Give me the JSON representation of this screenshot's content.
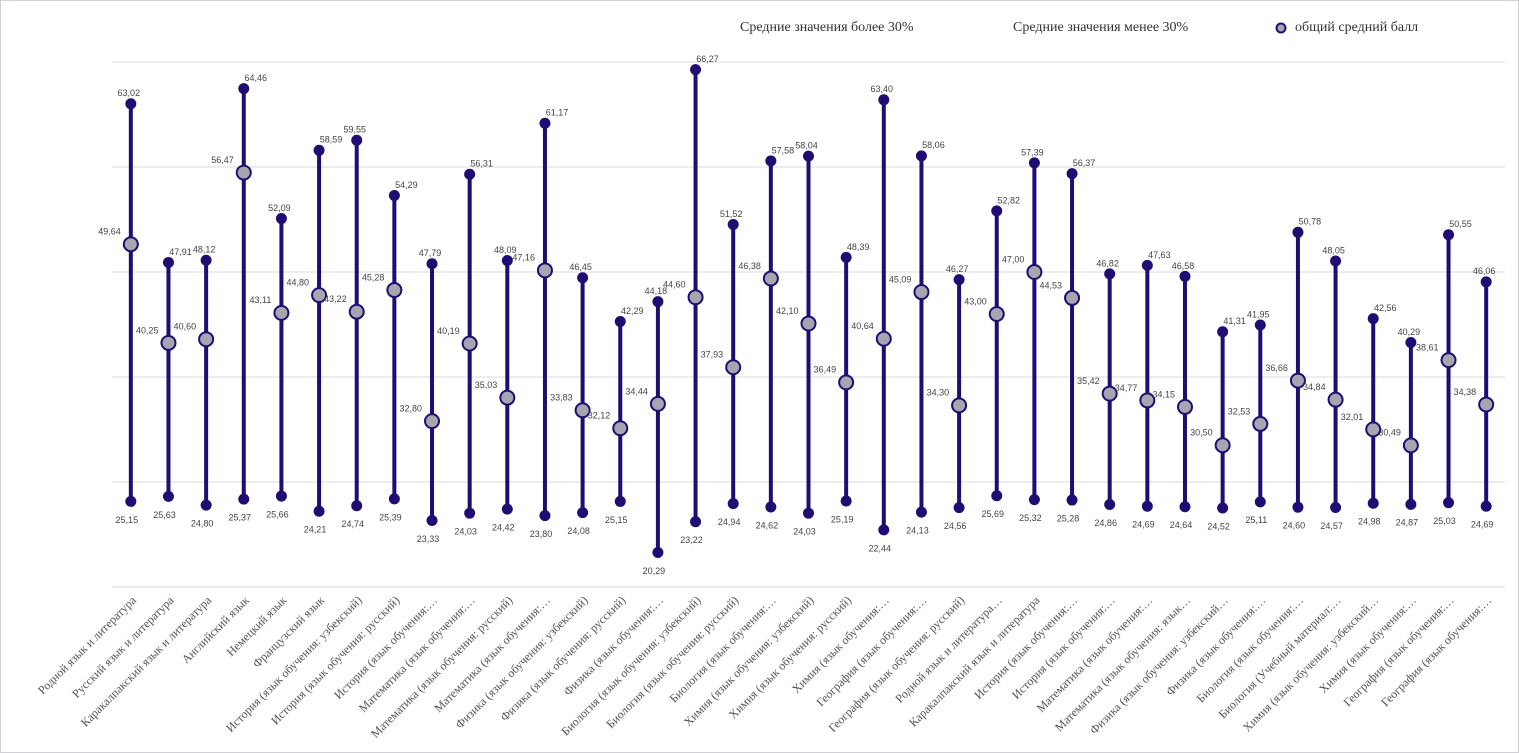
{
  "chart_data": {
    "type": "dumbbell",
    "categories": [
      "Родной язык и литература",
      "Русский язык и литература",
      "Каракалпакский язык и литература",
      "Английский язык",
      "Немецкий язык",
      "Французский язык",
      "История (язык обучения: узбекский)",
      "История (язык обучения: русский)",
      "История (язык обучения:…",
      "Математика (язык обучения:…",
      "Математика (язык обучения: русский)",
      "Математика  (язык обучения:…",
      "Физика (язык обучения: узбекский)",
      "Физика (язык обучения: русский)",
      "Физика (язык обучения:…",
      "Биология (язык обучения: узбекский)",
      "Биология (язык обучения: русский)",
      "Биология  (язык обучения:…",
      "Химия  (язык обучения: узбекский)",
      "Химия (язык обучения: русский)",
      "Химия (язык обучения:…",
      "География (язык обучения:…",
      "География (язык обучения: русский)",
      "Родной язык и литература…",
      "Каракалпакский язык и литература",
      "История (язык обучения:…",
      "История (язык обучения:…",
      "Математика (язык обучения:…",
      "Математика (язык обучения: язык…",
      "Физика (язык обучения: узбекский…",
      "Физика (язык обучения:…",
      "Биология (язык обучения:…",
      "Биология (Учебный материал:…",
      "Химия (язык обучения: узбекский…",
      "Химия (язык обучения:…",
      "География (язык обучения:…",
      "География (язык обучения:…"
    ],
    "series": [
      {
        "name": "Средние значения более 30%",
        "color": "#1f0d73",
        "values": [
          63.02,
          47.91,
          48.12,
          64.46,
          52.09,
          58.59,
          59.55,
          54.29,
          47.79,
          56.31,
          48.09,
          61.17,
          46.45,
          42.29,
          44.18,
          66.27,
          51.52,
          57.58,
          58.04,
          48.39,
          63.4,
          58.06,
          46.27,
          52.82,
          57.39,
          56.37,
          46.82,
          47.63,
          46.58,
          41.31,
          41.95,
          50.78,
          48.05,
          42.56,
          40.29,
          50.55,
          46.06
        ],
        "value_labels": [
          "63,02",
          "47,91",
          "48,12",
          "64,46",
          "52,09",
          "58,59",
          "59,55",
          "54,29",
          "47,79",
          "56,31",
          "48,09",
          "61,17",
          "46,45",
          "42,29",
          "44,18",
          "66,27",
          "51,52",
          "57,58",
          "58,04",
          "48,39",
          "63,40",
          "58,06",
          "46,27",
          "52,82",
          "57,39",
          "56,37",
          "46,82",
          "47,63",
          "46,58",
          "41,31",
          "41,95",
          "50,78",
          "48,05",
          "42,56",
          "40,29",
          "50,55",
          "46,06"
        ]
      },
      {
        "name": "Средние значения менее 30%",
        "color": "#1f0d73",
        "values": [
          25.15,
          25.63,
          24.8,
          25.37,
          25.66,
          24.21,
          24.74,
          25.39,
          23.33,
          24.03,
          24.42,
          23.8,
          24.08,
          25.15,
          20.29,
          23.22,
          24.94,
          24.62,
          24.03,
          25.19,
          22.44,
          24.13,
          24.56,
          25.69,
          25.32,
          25.28,
          24.86,
          24.69,
          24.64,
          24.52,
          25.11,
          24.6,
          24.57,
          24.98,
          24.87,
          25.03,
          24.69
        ],
        "value_labels": [
          "25,15",
          "25,63",
          "24,80",
          "25,37",
          "25,66",
          "24,21",
          "24,74",
          "25,39",
          "23,33",
          "24,03",
          "24,42",
          "23,80",
          "24,08",
          "25,15",
          "20,29",
          "23,22",
          "24,94",
          "24,62",
          "24,03",
          "25,19",
          "22,44",
          "24,13",
          "24,56",
          "25,69",
          "25,32",
          "25,28",
          "24,86",
          "24,69",
          "24,64",
          "24,52",
          "25,11",
          "24,60",
          "24,57",
          "24,98",
          "24,87",
          "25,03",
          "24,69"
        ]
      },
      {
        "name": "общий средний балл",
        "color": "#a6a6b0",
        "values": [
          49.64,
          40.25,
          40.6,
          56.47,
          43.11,
          44.8,
          43.22,
          45.28,
          32.8,
          40.19,
          35.03,
          47.16,
          33.83,
          32.12,
          34.44,
          44.6,
          37.93,
          46.38,
          42.1,
          36.49,
          40.64,
          45.09,
          34.3,
          43.0,
          47.0,
          44.53,
          35.42,
          34.77,
          34.15,
          30.5,
          32.53,
          36.66,
          34.84,
          32.01,
          30.49,
          38.61,
          34.38
        ],
        "value_labels": [
          "49,64",
          "40,25",
          "40,60",
          "56,47",
          "43,11",
          "44,80",
          "43,22",
          "45,28",
          "32,80",
          "40,19",
          "35,03",
          "47,16",
          "33,83",
          "32,12",
          "34,44",
          "44,60",
          "37,93",
          "46,38",
          "42,10",
          "36,49",
          "40,64",
          "45,09",
          "34,30",
          "43,00",
          "47,00",
          "44,53",
          "35,42",
          "34,77",
          "34,15",
          "30,50",
          "32,53",
          "36,66",
          "34,84",
          "32,01",
          "30,49",
          "38,61",
          "34,38"
        ]
      }
    ],
    "ylim": [
      17,
      67
    ]
  }
}
